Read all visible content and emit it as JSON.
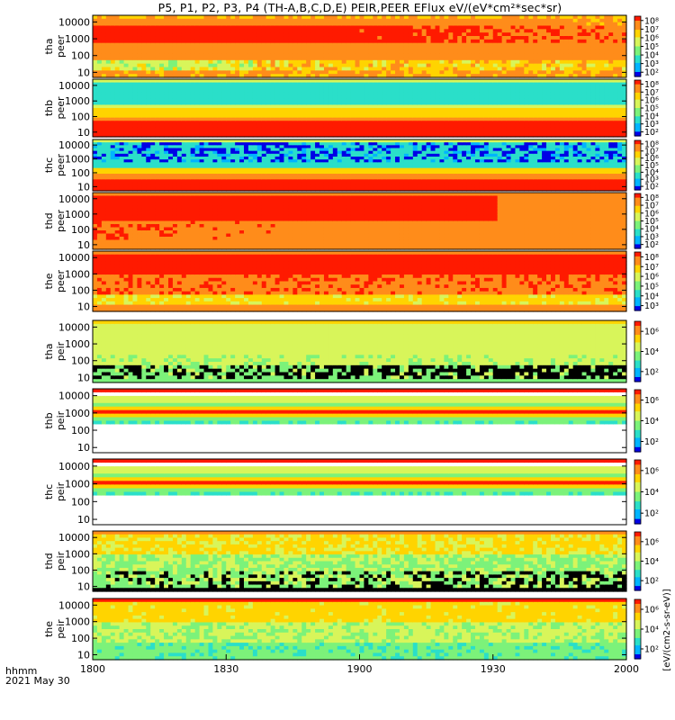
{
  "title": "P5, P1, P2, P3, P4 (TH-A,B,C,D,E) PEIR,PEER EFlux eV/(eV*cm²*sec*sr)",
  "footer": {
    "line1": "hhmm",
    "line2": "2021 May 30"
  },
  "colorbar_unit": "[eV/(cm2-s-sr-eV)]",
  "chart_data": {
    "type": "heatmap",
    "x_tick_labels": [
      "1800",
      "1830",
      "1900",
      "1930",
      "2000"
    ],
    "xlim_minutes": [
      0,
      120
    ],
    "x_ticks_minutes": [
      0,
      30,
      60,
      90,
      120
    ],
    "y_scale": "log",
    "ylim": [
      5,
      25000
    ],
    "y_tick_labels": [
      "10",
      "100",
      "1000",
      "10000"
    ],
    "y_tick_values": [
      10,
      100,
      1000,
      10000
    ],
    "colors": [
      "#d6d6d6",
      "#0000e6",
      "#00b4ff",
      "#2adfc9",
      "#7cf27a",
      "#d8f55a",
      "#ffd400",
      "#ff8c1a",
      "#ff1a00"
    ],
    "panels": [
      {
        "probe": "tha",
        "species": "peer",
        "y1": "tha",
        "y2": "peer",
        "cb_ticks": [
          "10⁸",
          "10⁷",
          "10⁶",
          "10⁵",
          "10⁴",
          "10³",
          "10²"
        ],
        "kind": "e_dense_a"
      },
      {
        "probe": "thb",
        "species": "peer",
        "y1": "thb",
        "y2": "peer",
        "cb_ticks": [
          "10⁸",
          "10⁷",
          "10⁶",
          "10⁵",
          "10⁴",
          "10³",
          "10²"
        ],
        "kind": "e_band"
      },
      {
        "probe": "thc",
        "species": "peer",
        "y1": "thc",
        "y2": "peer",
        "cb_ticks": [
          "10⁸",
          "10⁷",
          "10⁶",
          "10⁵",
          "10⁴",
          "10³",
          "10²"
        ],
        "kind": "e_band_low"
      },
      {
        "probe": "thd",
        "species": "peer",
        "y1": "thd",
        "y2": "peer",
        "cb_ticks": [
          "10⁸",
          "10⁷",
          "10⁶",
          "10⁵",
          "10⁴",
          "10³",
          "10²"
        ],
        "kind": "e_dense_d"
      },
      {
        "probe": "the",
        "species": "peer",
        "y1": "the",
        "y2": "peer",
        "cb_ticks": [
          "10⁸",
          "10⁷",
          "10⁶",
          "10⁵",
          "10⁴",
          "10³"
        ],
        "kind": "e_dense_e"
      },
      {
        "probe": "tha",
        "species": "peir",
        "y1": "tha",
        "y2": "peir",
        "cb_ticks": [
          "10⁶",
          "10⁴",
          "10²"
        ],
        "kind": "i_speckle"
      },
      {
        "probe": "thb",
        "species": "peir",
        "y1": "thb",
        "y2": "peir",
        "cb_ticks": [
          "10⁶",
          "10⁴",
          "10²"
        ],
        "kind": "i_band"
      },
      {
        "probe": "thc",
        "species": "peir",
        "y1": "thc",
        "y2": "peir",
        "cb_ticks": [
          "10⁶",
          "10⁴",
          "10²"
        ],
        "kind": "i_band"
      },
      {
        "probe": "thd",
        "species": "peir",
        "y1": "thd",
        "y2": "peir",
        "cb_ticks": [
          "10⁶",
          "10⁴",
          "10²"
        ],
        "kind": "i_speckle_d"
      },
      {
        "probe": "the",
        "species": "peir",
        "y1": "the",
        "y2": "peir",
        "cb_ticks": [
          "10⁶",
          "10⁴",
          "10²"
        ],
        "kind": "i_green"
      }
    ]
  }
}
